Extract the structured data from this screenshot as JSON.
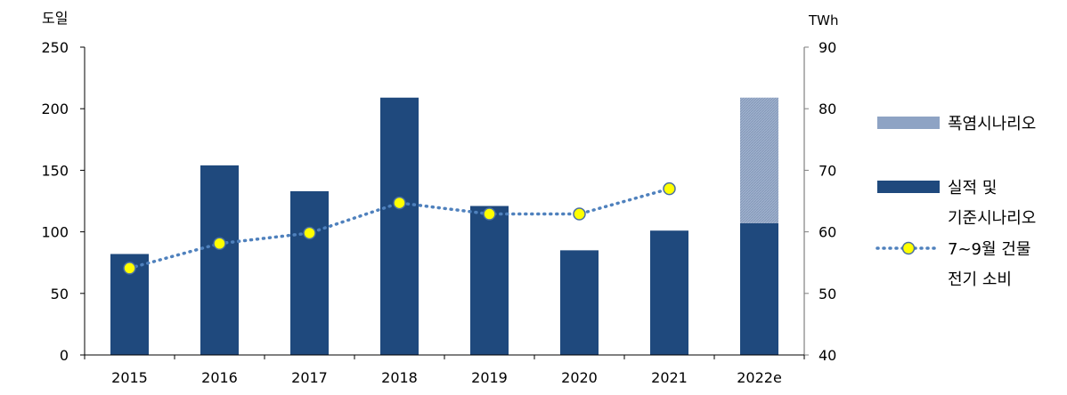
{
  "chart_data": {
    "type": "bar",
    "categories": [
      "2015",
      "2016",
      "2017",
      "2018",
      "2019",
      "2020",
      "2021",
      "2022e"
    ],
    "y_left": {
      "unit_label": "도일",
      "ylim": [
        0,
        250
      ],
      "ticks": [
        0,
        50,
        100,
        150,
        200,
        250
      ]
    },
    "y_right": {
      "unit_label": "TWh",
      "ylim": [
        40,
        90
      ],
      "ticks": [
        40,
        50,
        60,
        70,
        80,
        90
      ]
    },
    "series": [
      {
        "name": "실적 및 기준시나리오",
        "kind": "bar",
        "axis": "left",
        "color": "#1f497d",
        "values": [
          82,
          154,
          133,
          209,
          121,
          85,
          101,
          107
        ]
      },
      {
        "name": "폭염시나리오",
        "kind": "bar-stacked",
        "axis": "left",
        "color": "#8ea3c4",
        "values": [
          null,
          null,
          null,
          null,
          null,
          null,
          null,
          102
        ]
      },
      {
        "name": "7~9월 건물 전기 소비",
        "kind": "line",
        "axis": "right",
        "color": "#4f81bd",
        "marker_color": "#ffff00",
        "values": [
          54.1,
          58.1,
          59.8,
          64.7,
          62.9,
          62.9,
          67.0,
          null
        ]
      }
    ],
    "legend": {
      "placement": "right",
      "items": [
        {
          "label_lines": [
            "폭염시나리오"
          ]
        },
        {
          "label_lines": [
            "실적 및",
            "기준시나리오"
          ]
        },
        {
          "label_lines": [
            "7~9월 건물",
            "전기 소비"
          ]
        }
      ]
    },
    "grid": false
  }
}
